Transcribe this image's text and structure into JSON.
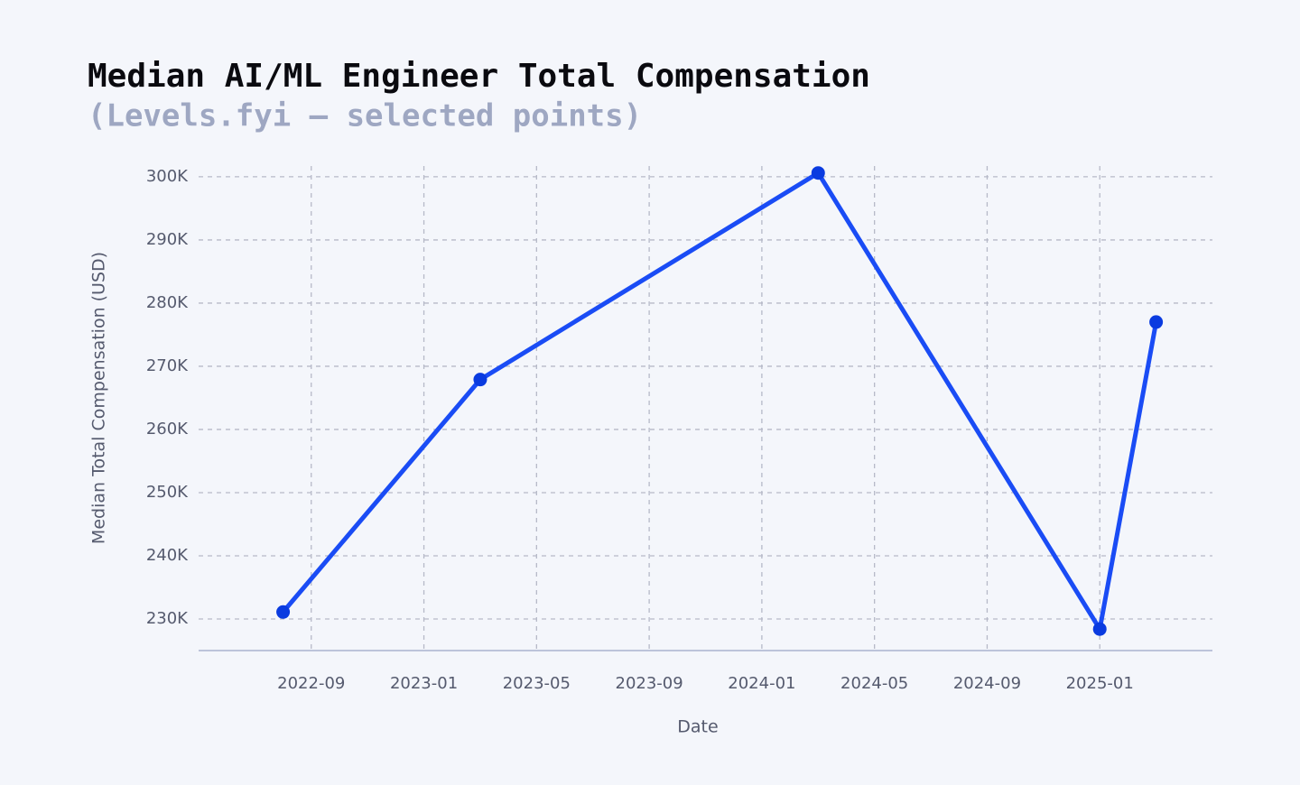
{
  "chart_data": {
    "type": "line",
    "title": "Median AI/ML Engineer Total Compensation",
    "subtitle": "(Levels.fyi — selected points)",
    "x_label": "Date",
    "y_label": "Median Total Compensation (USD)",
    "x": [
      "2022-08",
      "2023-03",
      "2024-03",
      "2025-01",
      "2025-03"
    ],
    "series": [
      {
        "name": "Median total compensation",
        "color": "#1a4cf5",
        "values": [
          231100,
          267900,
          300600,
          228400,
          277000
        ]
      }
    ],
    "xlim": [
      "2022-05",
      "2025-05"
    ],
    "xticks": [
      "2022-09",
      "2023-01",
      "2023-05",
      "2023-09",
      "2024-01",
      "2024-05",
      "2024-09",
      "2025-01"
    ],
    "ylim": [
      225000,
      301700
    ],
    "yticks": [
      {
        "value": 230000,
        "label": "230K"
      },
      {
        "value": 240000,
        "label": "240K"
      },
      {
        "value": 250000,
        "label": "250K"
      },
      {
        "value": 260000,
        "label": "260K"
      },
      {
        "value": 270000,
        "label": "270K"
      },
      {
        "value": 280000,
        "label": "280K"
      },
      {
        "value": 290000,
        "label": "290K"
      },
      {
        "value": 300000,
        "label": "300K"
      }
    ],
    "grid": true
  }
}
